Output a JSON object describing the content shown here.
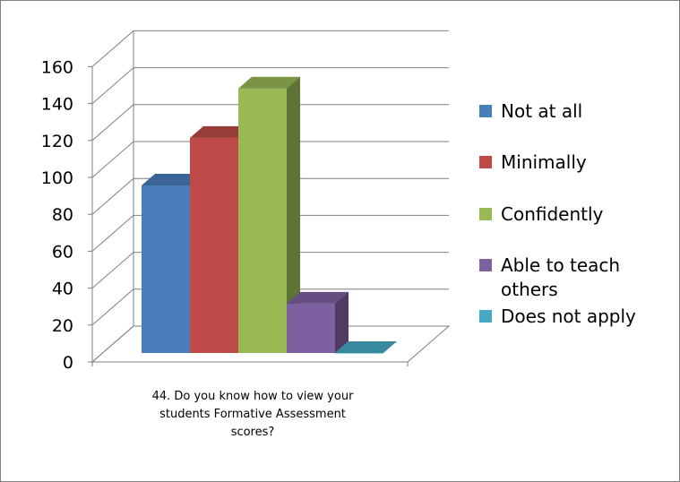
{
  "chart_data": {
    "type": "bar",
    "style": "3d-clustered-column",
    "categories": [
      "44. Do you know how to view your students Formative Assessment scores?"
    ],
    "category_label_lines": [
      "44. Do you know how to view your",
      "students Formative Assessment",
      "scores?"
    ],
    "series": [
      {
        "name": "Not at all",
        "values": [
          95
        ],
        "color": "#4A7EBB"
      },
      {
        "name": "Minimally",
        "values": [
          122
        ],
        "color": "#BE4B48"
      },
      {
        "name": "Confidently",
        "values": [
          150
        ],
        "color": "#98B954"
      },
      {
        "name": "Able to teach others",
        "values": [
          28
        ],
        "color": "#7D60A0"
      },
      {
        "name": "Does not apply",
        "values": [
          0
        ],
        "color": "#46AAC5"
      }
    ],
    "legend_lines": [
      [
        "Not at all"
      ],
      [
        "Minimally"
      ],
      [
        "Confidently"
      ],
      [
        "Able to teach",
        "others"
      ],
      [
        "Does not apply"
      ]
    ],
    "ylim": [
      0,
      160
    ],
    "yticks": [
      "0",
      "20",
      "40",
      "60",
      "80",
      "100",
      "120",
      "140",
      "160"
    ],
    "grid": true,
    "legend_position": "right",
    "title": "",
    "xlabel": "",
    "ylabel": ""
  }
}
